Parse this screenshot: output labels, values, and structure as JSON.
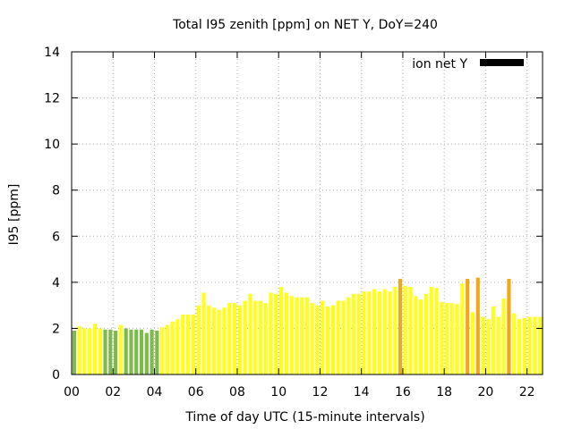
{
  "chart_data": {
    "type": "bar",
    "title": "Total I95 zenith [ppm] on NET Y, DoY=240",
    "xlabel": "Time of day UTC (15-minute intervals)",
    "ylabel": "I95 [ppm]",
    "xlim": [
      0,
      22.75
    ],
    "ylim": [
      0,
      14
    ],
    "x_ticks": [
      "00",
      "02",
      "04",
      "06",
      "08",
      "10",
      "12",
      "14",
      "16",
      "18",
      "20",
      "22"
    ],
    "y_ticks": [
      "0",
      "2",
      "4",
      "6",
      "8",
      "10",
      "12",
      "14"
    ],
    "grid": true,
    "legend": {
      "position": "top-right",
      "entries": [
        {
          "label": "ion net Y",
          "color": "#000000"
        }
      ]
    },
    "bar_width_hours": 0.18,
    "colors": {
      "green": "#7cba4a",
      "yellow": "#ffff1a",
      "orange": "#f0a818"
    },
    "series": [
      {
        "x": [
          0.125,
          0.375,
          0.625,
          0.875,
          1.125,
          1.375,
          1.625,
          1.875,
          2.125,
          2.375,
          2.625,
          2.875,
          3.125,
          3.375,
          3.625,
          3.875,
          4.125,
          4.375,
          4.625,
          4.875,
          5.125,
          5.375,
          5.625,
          5.875,
          6.125,
          6.375,
          6.625,
          6.875,
          7.125,
          7.375,
          7.625,
          7.875,
          8.125,
          8.375,
          8.625,
          8.875,
          9.125,
          9.375,
          9.625,
          9.875,
          10.125,
          10.375,
          10.625,
          10.875,
          11.125,
          11.375,
          11.625,
          11.875,
          12.125,
          12.375,
          12.625,
          12.875,
          13.125,
          13.375,
          13.625,
          13.875,
          14.125,
          14.375,
          14.625,
          14.875,
          15.125,
          15.375,
          15.625,
          15.875,
          16.125,
          16.375,
          16.625,
          16.875,
          17.125,
          17.375,
          17.625,
          17.875,
          18.125,
          18.375,
          18.625,
          18.875,
          19.125,
          19.375,
          19.625,
          19.875,
          20.125,
          20.375,
          20.625,
          20.875,
          21.125,
          21.375,
          21.625,
          21.875,
          22.125,
          22.375,
          22.625
        ],
        "values": [
          1.9,
          2.1,
          2.0,
          2.0,
          2.2,
          2.0,
          1.95,
          1.95,
          1.9,
          2.15,
          2.0,
          1.95,
          1.95,
          1.95,
          1.8,
          1.95,
          1.9,
          2.05,
          2.15,
          2.3,
          2.4,
          2.6,
          2.6,
          2.6,
          3.0,
          3.55,
          3.0,
          2.9,
          2.8,
          2.9,
          3.1,
          3.1,
          3.0,
          3.2,
          3.5,
          3.2,
          3.2,
          3.1,
          3.55,
          3.5,
          3.8,
          3.55,
          3.4,
          3.35,
          3.35,
          3.35,
          3.1,
          3.0,
          3.2,
          2.95,
          3.0,
          3.2,
          3.2,
          3.35,
          3.5,
          3.5,
          3.6,
          3.6,
          3.7,
          3.6,
          3.7,
          3.6,
          3.8,
          4.15,
          3.85,
          3.8,
          3.4,
          3.25,
          3.5,
          3.8,
          3.75,
          3.15,
          3.1,
          3.1,
          3.05,
          3.95,
          4.15,
          2.7,
          4.2,
          2.5,
          2.4,
          2.95,
          2.5,
          3.3,
          4.15,
          2.65,
          2.4,
          2.45,
          2.5,
          2.5,
          2.5
        ],
        "colors": [
          "green",
          "yellow",
          "yellow",
          "yellow",
          "yellow",
          "yellow",
          "green",
          "green",
          "green",
          "yellow",
          "green",
          "green",
          "green",
          "green",
          "green",
          "green",
          "green",
          "yellow",
          "yellow",
          "yellow",
          "yellow",
          "yellow",
          "yellow",
          "yellow",
          "yellow",
          "yellow",
          "yellow",
          "yellow",
          "yellow",
          "yellow",
          "yellow",
          "yellow",
          "yellow",
          "yellow",
          "yellow",
          "yellow",
          "yellow",
          "yellow",
          "yellow",
          "yellow",
          "yellow",
          "yellow",
          "yellow",
          "yellow",
          "yellow",
          "yellow",
          "yellow",
          "yellow",
          "yellow",
          "yellow",
          "yellow",
          "yellow",
          "yellow",
          "yellow",
          "yellow",
          "yellow",
          "yellow",
          "yellow",
          "yellow",
          "yellow",
          "yellow",
          "yellow",
          "yellow",
          "orange",
          "yellow",
          "yellow",
          "yellow",
          "yellow",
          "yellow",
          "yellow",
          "yellow",
          "yellow",
          "yellow",
          "yellow",
          "yellow",
          "yellow",
          "orange",
          "yellow",
          "orange",
          "yellow",
          "yellow",
          "yellow",
          "yellow",
          "yellow",
          "orange",
          "yellow",
          "yellow",
          "yellow",
          "yellow",
          "yellow",
          "yellow"
        ]
      }
    ]
  }
}
